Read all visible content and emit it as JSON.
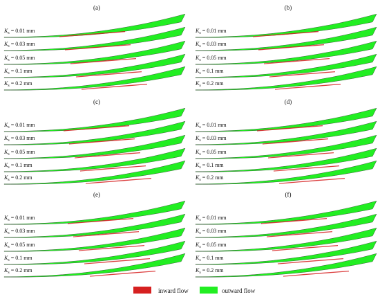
{
  "colors": {
    "inward": "#d62020",
    "outward": "#22ee22",
    "background": "#ffffff"
  },
  "panels": [
    {
      "id": "a",
      "label": "(a)",
      "rows": [
        "0.01 mm",
        "0.03 mm",
        "0.05 mm",
        "0.1 mm",
        "0.2 mm"
      ]
    },
    {
      "id": "b",
      "label": "(b)",
      "rows": [
        "0.01 mm",
        "0.03 mm",
        "0.05 mm",
        "0.1 mm",
        "0.2 mm"
      ]
    },
    {
      "id": "c",
      "label": "(c)",
      "rows": [
        "0.01 mm",
        "0.03 mm",
        "0.05 mm",
        "0.1 mm",
        "0.2 mm"
      ]
    },
    {
      "id": "d",
      "label": "(d)",
      "rows": [
        "0.01 mm",
        "0.03 mm",
        "0.05 mm",
        "0.1 mm",
        "0.2 mm"
      ]
    },
    {
      "id": "e",
      "label": "(e)",
      "rows": [
        "0.01 mm",
        "0.03 mm",
        "0.05 mm",
        "0.1 mm",
        "0.2 mm"
      ]
    },
    {
      "id": "f",
      "label": "(f)",
      "rows": [
        "0.01 mm",
        "0.03 mm",
        "0.05 mm",
        "0.1 mm",
        "0.2 mm"
      ]
    }
  ],
  "row_prefix": {
    "symbol": "K",
    "subscript": "s",
    "sep": " = "
  },
  "legend": {
    "inward_label": "inward flow",
    "outward_label": "outward flow"
  }
}
